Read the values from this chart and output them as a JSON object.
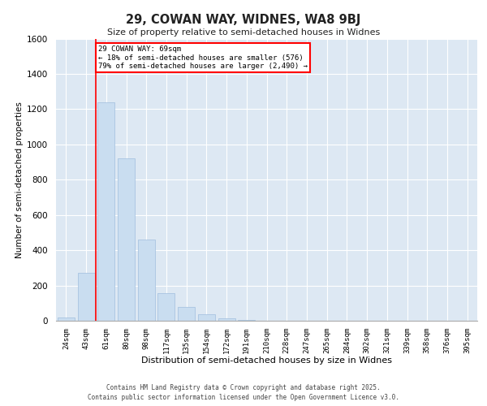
{
  "title1": "29, COWAN WAY, WIDNES, WA8 9BJ",
  "title2": "Size of property relative to semi-detached houses in Widnes",
  "xlabel": "Distribution of semi-detached houses by size in Widnes",
  "ylabel": "Number of semi-detached properties",
  "categories": [
    "24sqm",
    "43sqm",
    "61sqm",
    "80sqm",
    "98sqm",
    "117sqm",
    "135sqm",
    "154sqm",
    "172sqm",
    "191sqm",
    "210sqm",
    "228sqm",
    "247sqm",
    "265sqm",
    "284sqm",
    "302sqm",
    "321sqm",
    "339sqm",
    "358sqm",
    "376sqm",
    "395sqm"
  ],
  "values": [
    20,
    270,
    1240,
    920,
    460,
    155,
    80,
    35,
    15,
    5,
    2,
    1,
    0,
    0,
    0,
    0,
    0,
    0,
    0,
    0,
    0
  ],
  "bar_color": "#c9ddf0",
  "bar_edge_color": "#a0bedd",
  "annotation_text": "29 COWAN WAY: 69sqm\n← 18% of semi-detached houses are smaller (576)\n79% of semi-detached houses are larger (2,490) →",
  "ylim": [
    0,
    1600
  ],
  "yticks": [
    0,
    200,
    400,
    600,
    800,
    1000,
    1200,
    1400,
    1600
  ],
  "grid_color": "#ffffff",
  "bg_color": "#dde8f3",
  "footer1": "Contains HM Land Registry data © Crown copyright and database right 2025.",
  "footer2": "Contains public sector information licensed under the Open Government Licence v3.0."
}
